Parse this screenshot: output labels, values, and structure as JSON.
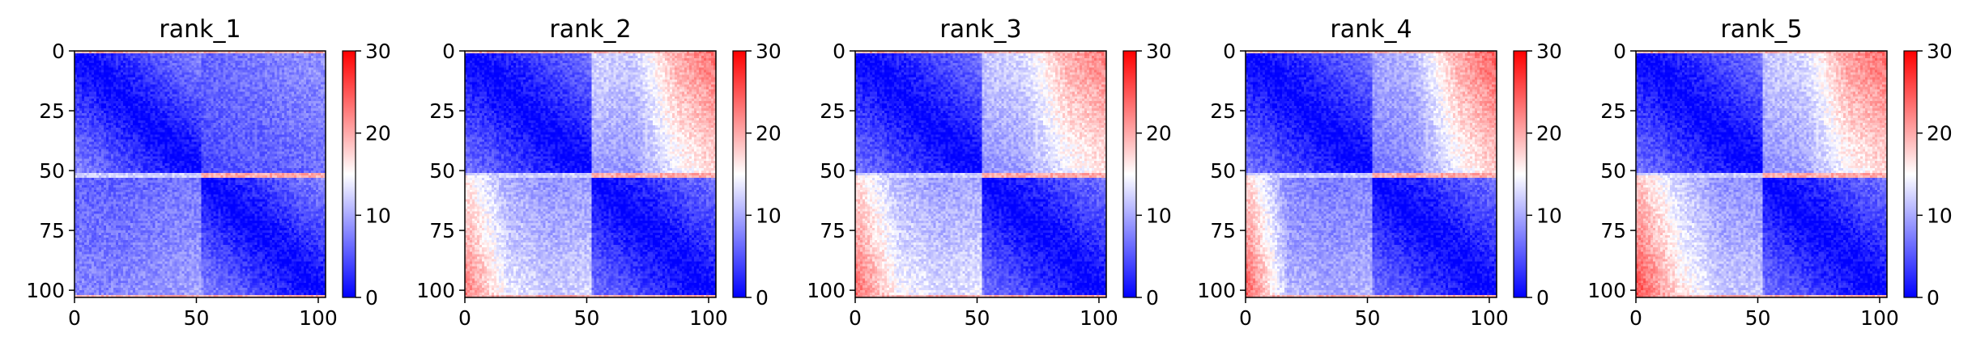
{
  "figure": {
    "background": "#ffffff"
  },
  "chart_data": [
    {
      "type": "heatmap",
      "title": "rank_1",
      "xticks": [
        "0",
        "50",
        "100"
      ],
      "yticks": [
        "0",
        "25",
        "50",
        "75",
        "100"
      ],
      "xlim": [
        0,
        103
      ],
      "ylim": [
        103,
        0
      ],
      "colorbar": {
        "ticks": [
          "0",
          "10",
          "20",
          "30"
        ],
        "range": [
          0,
          30
        ],
        "colormap": [
          "#0000ff",
          "#ffffff",
          "#ff0000"
        ]
      },
      "matrix_size": 103,
      "domain_boundary": 52,
      "diagonal_value": 0,
      "within_domain_far_value": 7,
      "cross_domain_values": [
        [
          6,
          7,
          8,
          9
        ],
        [
          8,
          8,
          9,
          10
        ]
      ],
      "edge_band_values": [
        20,
        25
      ]
    },
    {
      "type": "heatmap",
      "title": "rank_2",
      "xticks": [
        "0",
        "50",
        "100"
      ],
      "yticks": [
        "0",
        "25",
        "50",
        "75",
        "100"
      ],
      "xlim": [
        0,
        103
      ],
      "ylim": [
        103,
        0
      ],
      "colorbar": {
        "ticks": [
          "0",
          "10",
          "20",
          "30"
        ],
        "range": [
          0,
          30
        ],
        "colormap": [
          "#0000ff",
          "#ffffff",
          "#ff0000"
        ]
      },
      "matrix_size": 103,
      "domain_boundary": 52,
      "diagonal_value": 0,
      "within_domain_far_value": 6,
      "cross_domain_values": [
        [
          13,
          12,
          20,
          24
        ],
        [
          23,
          14,
          12,
          13
        ]
      ],
      "edge_band_values": [
        20,
        25
      ]
    },
    {
      "type": "heatmap",
      "title": "rank_3",
      "xticks": [
        "0",
        "50",
        "100"
      ],
      "yticks": [
        "0",
        "25",
        "50",
        "75",
        "100"
      ],
      "xlim": [
        0,
        103
      ],
      "ylim": [
        103,
        0
      ],
      "colorbar": {
        "ticks": [
          "0",
          "10",
          "20",
          "30"
        ],
        "range": [
          0,
          30
        ],
        "colormap": [
          "#0000ff",
          "#ffffff",
          "#ff0000"
        ]
      },
      "matrix_size": 103,
      "domain_boundary": 52,
      "diagonal_value": 0,
      "within_domain_far_value": 6,
      "cross_domain_values": [
        [
          12,
          13,
          20,
          23
        ],
        [
          24,
          15,
          13,
          14
        ]
      ],
      "edge_band_values": [
        20,
        25
      ]
    },
    {
      "type": "heatmap",
      "title": "rank_4",
      "xticks": [
        "0",
        "50",
        "100"
      ],
      "yticks": [
        "0",
        "25",
        "50",
        "75",
        "100"
      ],
      "xlim": [
        0,
        103
      ],
      "ylim": [
        103,
        0
      ],
      "colorbar": {
        "ticks": [
          "0",
          "10",
          "20",
          "30"
        ],
        "range": [
          0,
          30
        ],
        "colormap": [
          "#0000ff",
          "#ffffff",
          "#ff0000"
        ]
      },
      "matrix_size": 103,
      "domain_boundary": 52,
      "diagonal_value": 0,
      "within_domain_far_value": 6,
      "cross_domain_values": [
        [
          10,
          11,
          20,
          25
        ],
        [
          25,
          11,
          10,
          11
        ]
      ],
      "edge_band_values": [
        20,
        25
      ]
    },
    {
      "type": "heatmap",
      "title": "rank_5",
      "xticks": [
        "0",
        "50",
        "100"
      ],
      "yticks": [
        "0",
        "25",
        "50",
        "75",
        "100"
      ],
      "xlim": [
        0,
        103
      ],
      "ylim": [
        103,
        0
      ],
      "colorbar": {
        "ticks": [
          "0",
          "10",
          "20",
          "30"
        ],
        "range": [
          0,
          30
        ],
        "colormap": [
          "#0000ff",
          "#ffffff",
          "#ff0000"
        ]
      },
      "matrix_size": 103,
      "domain_boundary": 52,
      "diagonal_value": 0,
      "within_domain_far_value": 6,
      "cross_domain_values": [
        [
          12,
          13,
          21,
          24
        ],
        [
          26,
          17,
          12,
          12
        ]
      ],
      "edge_band_values": [
        20,
        25
      ]
    }
  ]
}
